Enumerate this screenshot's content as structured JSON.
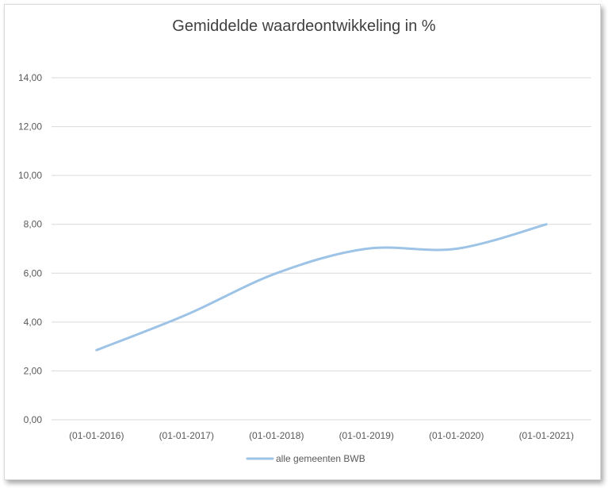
{
  "chart_data": {
    "type": "line",
    "title": "Gemiddelde waardeontwikkeling in %",
    "xlabel": "",
    "ylabel": "",
    "categories": [
      "(01-01-2016)",
      "(01-01-2017)",
      "(01-01-2018)",
      "(01-01-2019)",
      "(01-01-2020)",
      "(01-01-2021)"
    ],
    "series": [
      {
        "name": "alle gemeenten BWB",
        "values": [
          2.85,
          4.3,
          6.0,
          7.0,
          7.0,
          8.0
        ],
        "color": "#9dc3e6"
      }
    ],
    "ylim": [
      0,
      14
    ],
    "yticks": [
      "0,00",
      "2,00",
      "4,00",
      "6,00",
      "8,00",
      "10,00",
      "12,00",
      "14,00"
    ],
    "grid": true,
    "legend": "bottom",
    "gridColor": "#d9d9d9"
  }
}
